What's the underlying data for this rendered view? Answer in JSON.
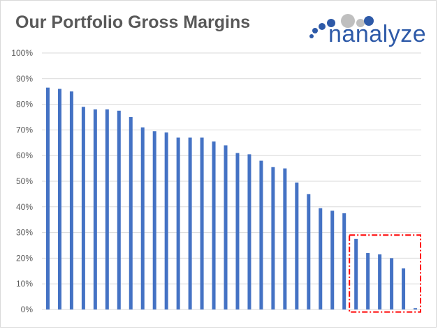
{
  "title": "Our Portfolio Gross Margins",
  "logo": {
    "text": "nanalyze",
    "icon": "dots-circles-icon",
    "color": "#2e5aa8"
  },
  "colors": {
    "bar": "#4472c4",
    "grid": "#d9d9d9",
    "highlight": "#ff0000"
  },
  "chart_data": {
    "type": "bar",
    "title": "Our Portfolio Gross Margins",
    "xlabel": "",
    "ylabel": "",
    "ylim": [
      0,
      100
    ],
    "yticks": [
      "0%",
      "10%",
      "20%",
      "30%",
      "40%",
      "50%",
      "60%",
      "70%",
      "80%",
      "90%",
      "100%"
    ],
    "grid": true,
    "legend": "none",
    "values": [
      86.5,
      86,
      85,
      79,
      78,
      78,
      77.5,
      75,
      71,
      69.5,
      69,
      67,
      67,
      67,
      65.5,
      64,
      61,
      60.5,
      58,
      55.5,
      55,
      49.5,
      45,
      39.5,
      38.5,
      37.5,
      27.5,
      22,
      21.5,
      20,
      16,
      0.5
    ],
    "annotations": [
      {
        "type": "highlight-box",
        "style": "red dash-dot",
        "from_index": 26,
        "to_index": 31,
        "y_range": [
          -1,
          29
        ]
      }
    ]
  }
}
